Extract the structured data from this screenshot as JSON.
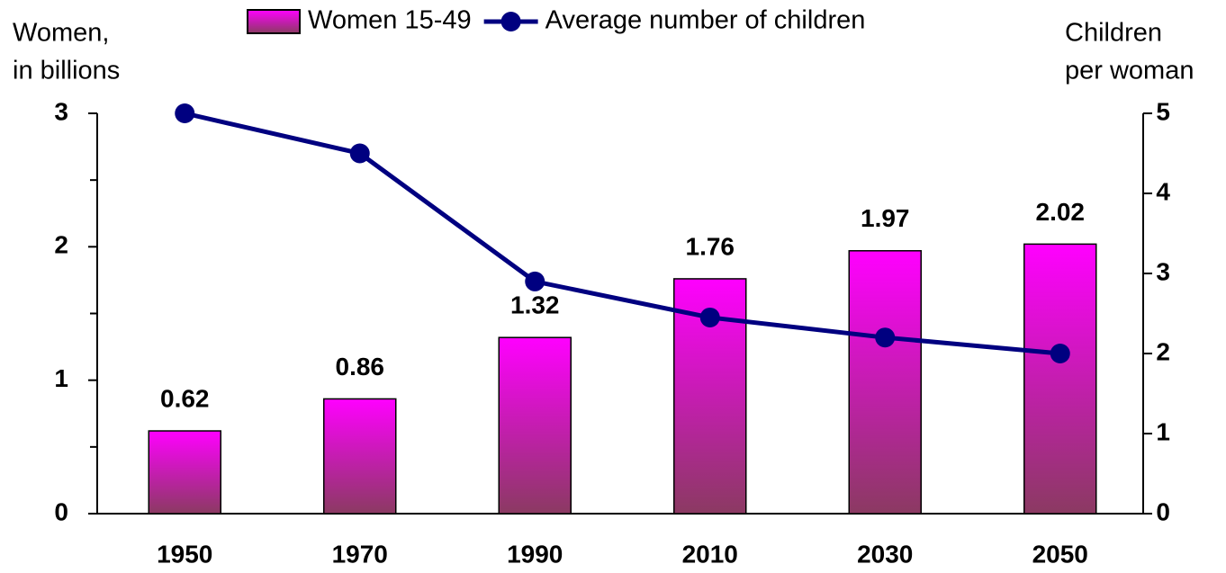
{
  "chart_data": {
    "type": "bar",
    "categories": [
      "1950",
      "1970",
      "1990",
      "2010",
      "2030",
      "2050"
    ],
    "y_label": [
      "Women,",
      "in billions"
    ],
    "y2_label": [
      "Children",
      "per woman"
    ],
    "series": [
      {
        "name": "Women 15-49",
        "type": "bar",
        "color": "#ff00ff",
        "color_bottom": "#8b3a62",
        "values": [
          0.62,
          0.86,
          1.32,
          1.76,
          1.97,
          2.02
        ],
        "data_labels": true
      },
      {
        "name": "Average number of children",
        "type": "line",
        "axis": "y2",
        "color": "#000080",
        "values": [
          5.0,
          4.5,
          2.9,
          2.45,
          2.2,
          2.0
        ]
      }
    ],
    "ylim": [
      0,
      3
    ],
    "yticks": [
      0,
      1,
      2,
      3
    ],
    "y2lim": [
      0,
      5
    ],
    "y2ticks": [
      0,
      1,
      2,
      3,
      4,
      5
    ],
    "grid": false,
    "legend": "top"
  }
}
